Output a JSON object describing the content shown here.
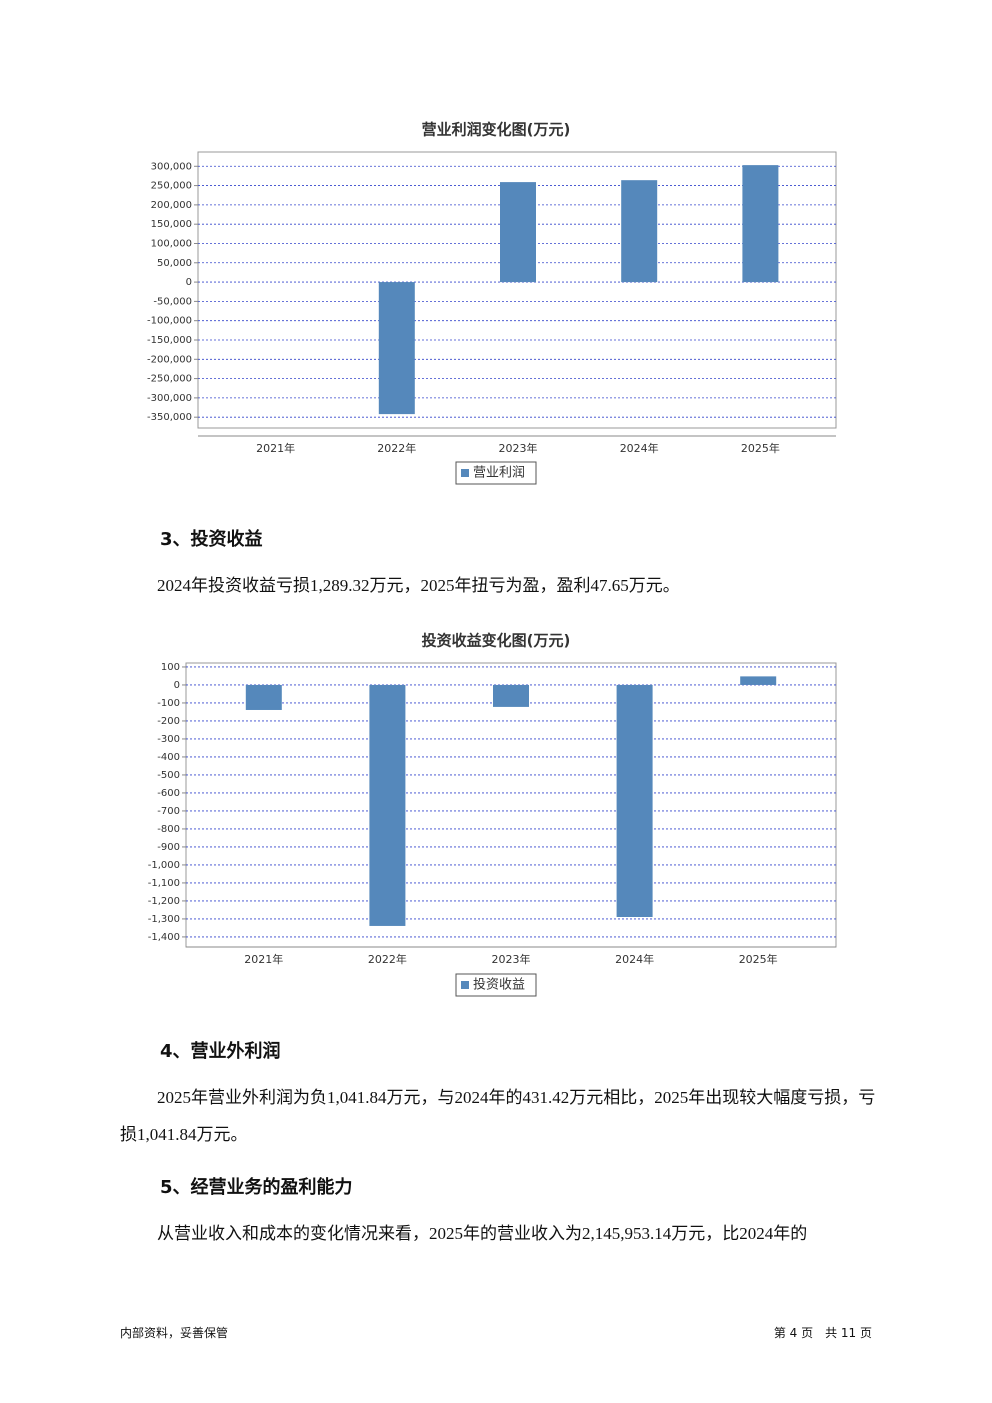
{
  "chart_data": [
    {
      "type": "bar",
      "title": "营业利润变化图(万元)",
      "categories": [
        "2021年",
        "2022年",
        "2023年",
        "2024年",
        "2025年"
      ],
      "series": [
        {
          "name": "营业利润",
          "color": "#5588bb",
          "values": [
            null,
            -342000,
            259000,
            264000,
            303000
          ]
        }
      ],
      "ylim": [
        -378000,
        337000
      ],
      "yticks": [
        {
          "value": 300000,
          "label": "300,000"
        },
        {
          "value": 250000,
          "label": "250,000"
        },
        {
          "value": 200000,
          "label": "200,000"
        },
        {
          "value": 150000,
          "label": "150,000"
        },
        {
          "value": 100000,
          "label": "100,000"
        },
        {
          "value": 50000,
          "label": "50,000"
        },
        0,
        {
          "value": -50000,
          "label": "-50,000"
        },
        {
          "value": -100000,
          "label": "-100,000"
        },
        {
          "value": -150000,
          "label": "-150,000"
        },
        {
          "value": -200000,
          "label": "-200,000"
        },
        {
          "value": -250000,
          "label": "-250,000"
        },
        {
          "value": -300000,
          "label": "-300,000"
        },
        {
          "value": -350000,
          "label": "-350,000"
        }
      ],
      "grid": true,
      "legend": "bottom"
    },
    {
      "type": "bar",
      "title": "投资收益变化图(万元)",
      "categories": [
        "2021年",
        "2022年",
        "2023年",
        "2024年",
        "2025年"
      ],
      "series": [
        {
          "name": "投资收益",
          "color": "#5588bb",
          "values": [
            -139,
            -1339,
            -122,
            -1289.32,
            47.65
          ]
        }
      ],
      "ylim": [
        -1456,
        122
      ],
      "yticks": [
        100,
        0,
        -100,
        -200,
        -300,
        -400,
        -500,
        -600,
        -700,
        -800,
        -900,
        {
          "value": -1000,
          "label": "-1,000"
        },
        {
          "value": -1100,
          "label": "-1,100"
        },
        {
          "value": -1200,
          "label": "-1,200"
        },
        {
          "value": -1300,
          "label": "-1,300"
        },
        {
          "value": -1400,
          "label": "-1,400"
        }
      ],
      "grid": true,
      "legend": "bottom"
    }
  ],
  "sections": [
    {
      "heading": "3、投资收益",
      "paragraphs": [
        "2024年投资收益亏损1,289.32万元，2025年扭亏为盈，盈利47.65万元。"
      ]
    },
    {
      "heading": "4、营业外利润",
      "paragraphs": [
        "2025年营业外利润为负1,041.84万元，与2024年的431.42万元相比，2025年出现较大幅度亏损，亏损1,041.84万元。"
      ]
    },
    {
      "heading": "5、经营业务的盈利能力",
      "paragraphs": [
        "从营业收入和成本的变化情况来看，2025年的营业收入为2,145,953.14万元，比2024年的"
      ]
    }
  ],
  "footer": {
    "left": "内部资料，妥善保管",
    "right": "第 4 页　共 11 页"
  }
}
